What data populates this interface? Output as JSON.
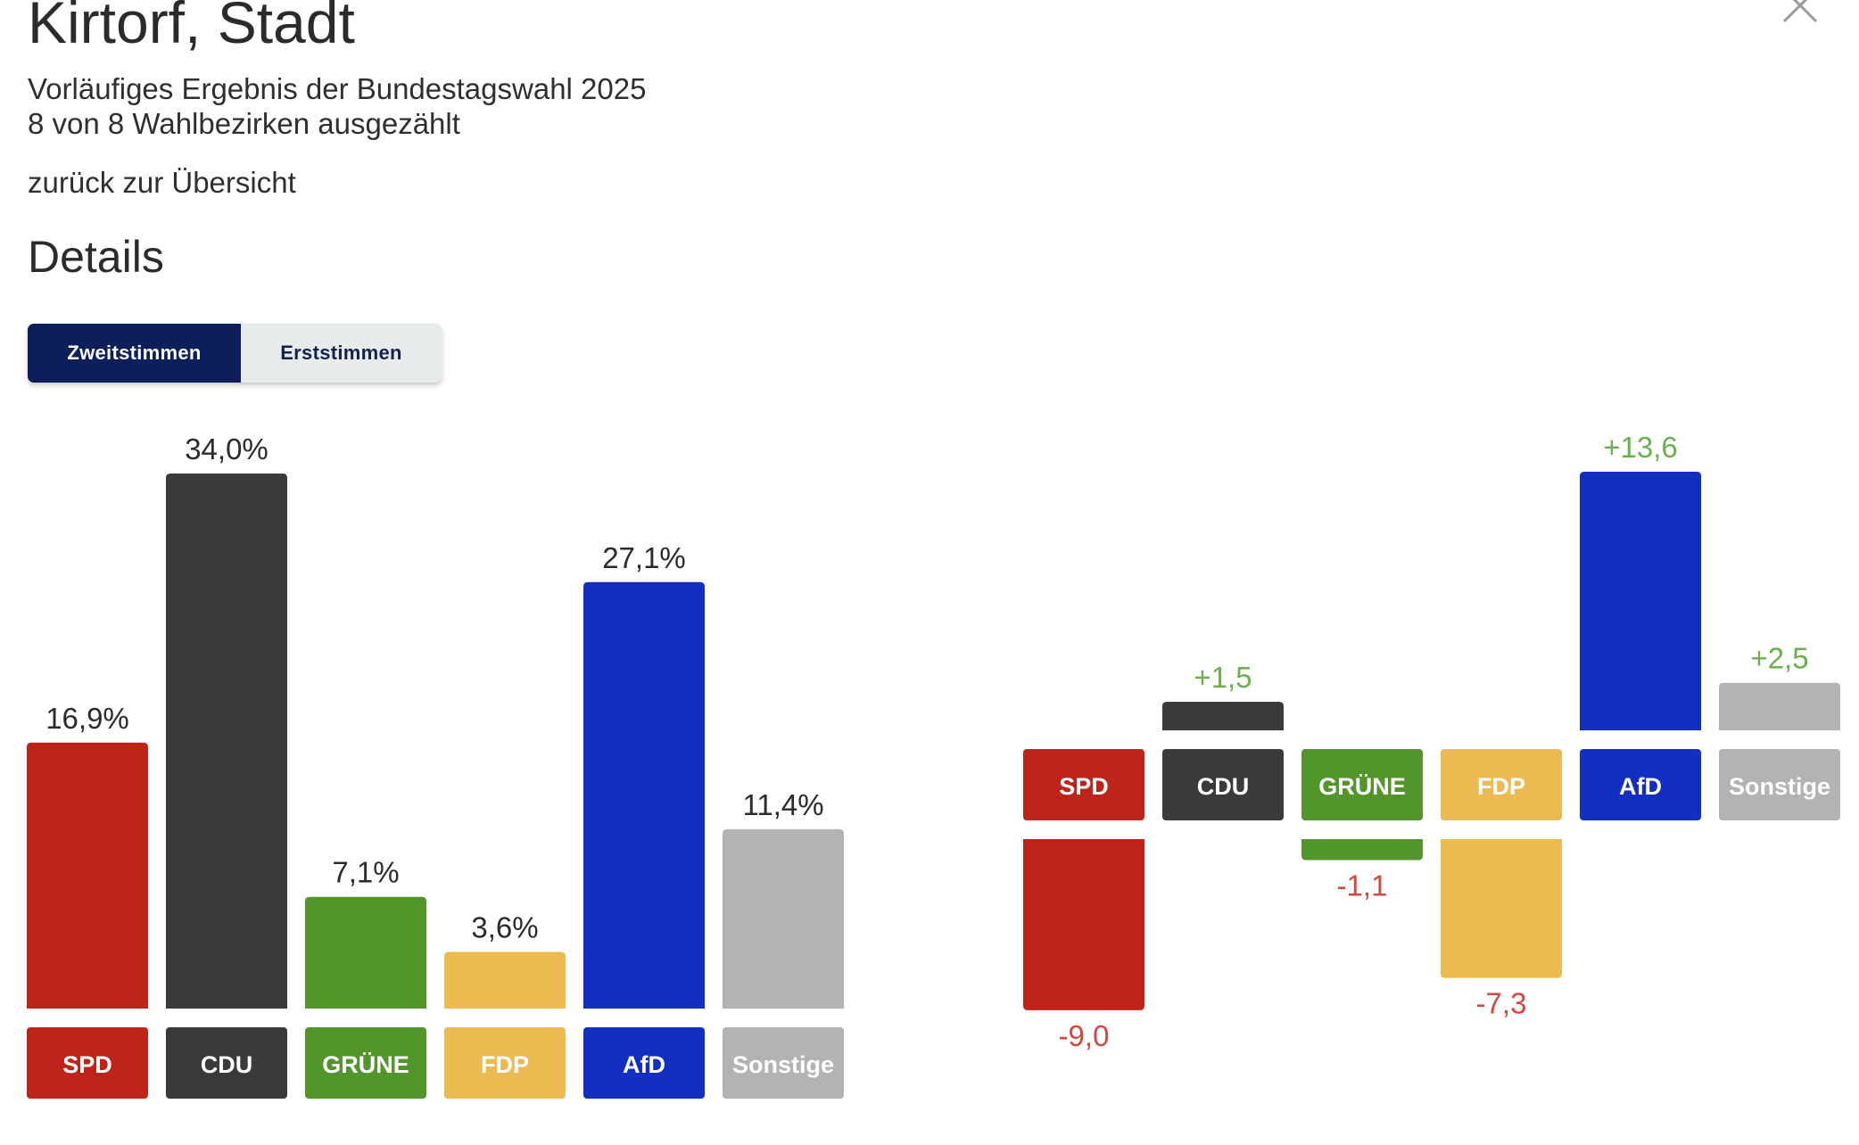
{
  "header": {
    "title": "Kirtorf, Stadt",
    "subtitle_line1": "Vorläufiges Ergebnis der Bundestagswahl 2025",
    "subtitle_line2": "8 von 8 Wahlbezirken ausgezählt",
    "back_link": "zurück zur Übersicht",
    "section_title": "Details"
  },
  "tabs": [
    {
      "label": "Zweitstimmen",
      "active": true
    },
    {
      "label": "Erststimmen",
      "active": false
    }
  ],
  "icons": {
    "close": "close-icon"
  },
  "colors": {
    "SPD": "#be2419",
    "CDU": "#3a3a3a",
    "GRÜNE": "#51952b",
    "FDP": "#ebbb52",
    "AfD": "#132fc2",
    "Sonstige": "#b3b3b3",
    "positive": "#6ab04c",
    "negative": "#d2483c",
    "tab_active_bg": "#0c1f5a",
    "tab_inactive_bg": "#e8ebec"
  },
  "chart_data": [
    {
      "type": "bar",
      "categories": [
        "SPD",
        "CDU",
        "GRÜNE",
        "FDP",
        "AfD",
        "Sonstige"
      ],
      "values": [
        16.9,
        34.0,
        7.1,
        3.6,
        27.1,
        11.4
      ],
      "value_labels": [
        "16,9%",
        "34,0%",
        "7,1%",
        "3,6%",
        "27,1%",
        "11,4%"
      ],
      "unit": "%"
    },
    {
      "type": "bar",
      "categories": [
        "SPD",
        "CDU",
        "GRÜNE",
        "FDP",
        "AfD",
        "Sonstige"
      ],
      "values": [
        -9.0,
        1.5,
        -1.1,
        -7.3,
        13.6,
        2.5
      ],
      "value_labels": [
        "-9,0",
        "+1,5",
        "-1,1",
        "-7,3",
        "+13,6",
        "+2,5"
      ]
    }
  ]
}
